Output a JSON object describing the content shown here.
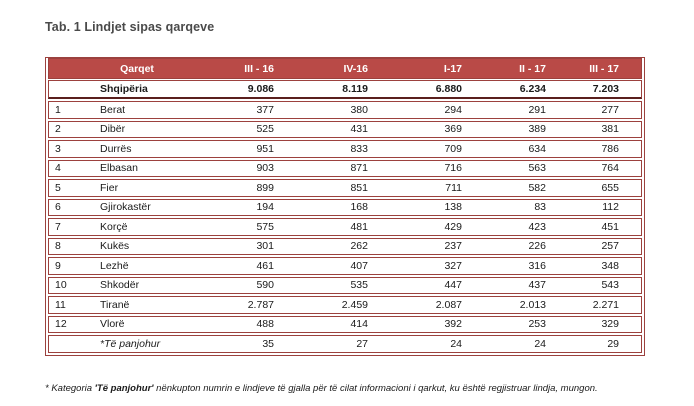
{
  "title": "Tab. 1 Lindjet sipas qarqeve",
  "table": {
    "columns": [
      "Qarqet",
      "III - 16",
      "IV-16",
      "I-17",
      "II - 17",
      "III - 17"
    ],
    "total_row": {
      "label": "Shqipëria",
      "values": [
        "9.086",
        "8.119",
        "6.880",
        "6.234",
        "7.203"
      ]
    },
    "rows": [
      {
        "num": "1",
        "name": "Berat",
        "values": [
          "377",
          "380",
          "294",
          "291",
          "277"
        ]
      },
      {
        "num": "2",
        "name": "Dibër",
        "values": [
          "525",
          "431",
          "369",
          "389",
          "381"
        ]
      },
      {
        "num": "3",
        "name": "Durrës",
        "values": [
          "951",
          "833",
          "709",
          "634",
          "786"
        ]
      },
      {
        "num": "4",
        "name": "Elbasan",
        "values": [
          "903",
          "871",
          "716",
          "563",
          "764"
        ]
      },
      {
        "num": "5",
        "name": "Fier",
        "values": [
          "899",
          "851",
          "711",
          "582",
          "655"
        ]
      },
      {
        "num": "6",
        "name": "Gjirokastër",
        "values": [
          "194",
          "168",
          "138",
          "83",
          "112"
        ]
      },
      {
        "num": "7",
        "name": "Korçë",
        "values": [
          "575",
          "481",
          "429",
          "423",
          "451"
        ]
      },
      {
        "num": "8",
        "name": "Kukës",
        "values": [
          "301",
          "262",
          "237",
          "226",
          "257"
        ]
      },
      {
        "num": "9",
        "name": "Lezhë",
        "values": [
          "461",
          "407",
          "327",
          "316",
          "348"
        ]
      },
      {
        "num": "10",
        "name": "Shkodër",
        "values": [
          "590",
          "535",
          "447",
          "437",
          "543"
        ]
      },
      {
        "num": "11",
        "name": "Tiranë",
        "values": [
          "2.787",
          "2.459",
          "2.087",
          "2.013",
          "2.271"
        ]
      },
      {
        "num": "12",
        "name": "Vlorë",
        "values": [
          "488",
          "414",
          "392",
          "253",
          "329"
        ]
      }
    ],
    "unknown_row": {
      "label": "*Të panjohur",
      "values": [
        "35",
        "27",
        "24",
        "24",
        "29"
      ]
    }
  },
  "footnote": {
    "prefix": "* Kategoria ",
    "emphasis": "'Të panjohur'",
    "suffix": " nënkupton numrin e lindjeve të gjalla për të cilat informacioni i qarkut, ku është regjistruar lindja, mungon."
  },
  "colors": {
    "header_bg": "#b94a47",
    "border": "#9c413e",
    "thick_border": "#5a1f1d",
    "title_text": "#4a4a4a",
    "header_text": "#ffffff"
  }
}
